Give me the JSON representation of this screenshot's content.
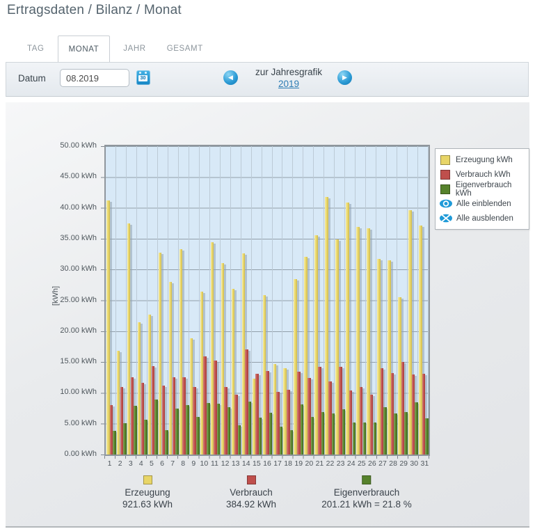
{
  "header": {
    "title": "Ertragsdaten / Bilanz / Monat"
  },
  "tabs": [
    {
      "label": "TAG",
      "active": false
    },
    {
      "label": "MONAT",
      "active": true
    },
    {
      "label": "JAHR",
      "active": false
    },
    {
      "label": "GESAMT",
      "active": false
    }
  ],
  "datum": {
    "label": "Datum",
    "value": "08.2019",
    "year_nav_label": "zur Jahresgrafik",
    "year_link": "2019"
  },
  "icons": {
    "calendar_text": "30",
    "prev_arrow": "◀",
    "next_arrow": "▶",
    "eye_on": "eye-icon",
    "eye_off": "eye-crossed-icon"
  },
  "colors": {
    "erzeugung": "#e8d567",
    "verbrauch": "#bf4f4c",
    "eigenverbrauch": "#56822c",
    "accent_blue": "#1f9ad8",
    "link_blue": "#2d7cb4",
    "chart_background": "#d8e9f7"
  },
  "chart_data": {
    "type": "bar",
    "title": "",
    "xlabel": "",
    "ylabel": "[kWh]",
    "ylim": [
      0,
      50
    ],
    "ytick_step": 5,
    "ytick_suffix": " kWh",
    "grid": true,
    "legend_position": "top-right",
    "categories": [
      1,
      2,
      3,
      4,
      5,
      6,
      7,
      8,
      9,
      10,
      11,
      12,
      13,
      14,
      15,
      16,
      17,
      18,
      19,
      20,
      21,
      22,
      23,
      24,
      25,
      26,
      27,
      28,
      29,
      30,
      31
    ],
    "series": [
      {
        "name": "Erzeugung kWh",
        "color": "#e8d567",
        "values": [
          41.2,
          16.8,
          37.5,
          21.4,
          22.7,
          32.7,
          28.0,
          33.3,
          18.8,
          26.4,
          34.4,
          31.0,
          26.9,
          32.6,
          12.3,
          25.8,
          14.7,
          14.0,
          28.5,
          32.1,
          35.5,
          41.8,
          34.9,
          40.9,
          36.9,
          36.7,
          31.7,
          31.5,
          25.5,
          39.6,
          37.1
        ]
      },
      {
        "name": "Verbrauch kWh",
        "color": "#bf4f4c",
        "values": [
          8.0,
          11.0,
          12.5,
          11.6,
          14.3,
          11.2,
          12.5,
          12.5,
          11.0,
          15.9,
          15.2,
          11.0,
          9.7,
          17.0,
          13.1,
          13.5,
          10.2,
          10.5,
          13.4,
          12.4,
          14.2,
          11.8,
          14.2,
          10.4,
          11.0,
          9.7,
          14.0,
          13.2,
          15.0,
          13.0,
          13.1
        ]
      },
      {
        "name": "Eigenverbrauch kWh",
        "color": "#56822c",
        "values": [
          3.8,
          5.1,
          7.9,
          5.7,
          8.9,
          4.0,
          7.4,
          8.0,
          6.1,
          8.3,
          8.2,
          7.7,
          4.7,
          8.6,
          6.0,
          6.8,
          4.5,
          4.0,
          8.1,
          6.1,
          6.9,
          6.7,
          7.3,
          5.2,
          5.2,
          5.2,
          7.7,
          6.7,
          6.9,
          8.5,
          5.9
        ]
      }
    ],
    "legend_extra": [
      "Alle einblenden",
      "Alle ausblenden"
    ],
    "totals": {
      "erzeugung_label": "Erzeugung",
      "erzeugung_value": "921.63 kWh",
      "verbrauch_label": "Verbrauch",
      "verbrauch_value": "384.92 kWh",
      "eigenverbrauch_label": "Eigenverbrauch",
      "eigenverbrauch_value": "201.21 kWh = 21.8 %"
    }
  }
}
